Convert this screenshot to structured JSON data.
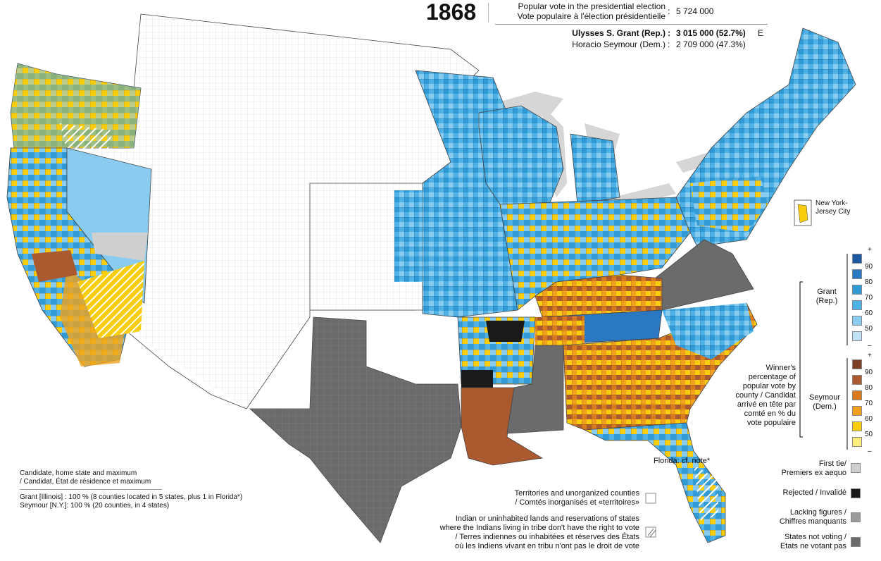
{
  "header": {
    "year": "1868",
    "popular_vote_en": "Popular vote in the presidential election",
    "popular_vote_fr": "Vote populaire à l'élection présidentielle",
    "colon": ":",
    "total_votes": "5 724 000",
    "grant": {
      "name": "Ulysses S. Grant (Rep.)",
      "colon": ":",
      "votes": "3 015 000  (52.7%)",
      "mark": "E"
    },
    "seymour": {
      "name": "Horacio Seymour (Dem.)",
      "colon": ":",
      "votes": "2 709 000  (47.3%)"
    }
  },
  "inset": {
    "label": "New York-\nJersey City"
  },
  "florida_note": "Florida: cf. note*",
  "scale": {
    "plus": "+",
    "minus": "–",
    "ticks": [
      "90",
      "80",
      "70",
      "60",
      "50"
    ],
    "grant_label": "Grant\n(Rep.)",
    "seymour_label": "Seymour\n(Dem.)",
    "caption": "Winner's\npercentage of\npopular vote by\ncounty / Candidat\narrivé en tête par\ncomté en % du\nvote populaire",
    "grant_colors": [
      "#1d5aa6",
      "#2a78c2",
      "#2f9ad6",
      "#4fb2e6",
      "#89ccf0",
      "#bfe2f7"
    ],
    "seymour_colors": [
      "#7e4026",
      "#aa5a2e",
      "#d97a1f",
      "#f0a21c",
      "#f7cd0e",
      "#fbee7a"
    ]
  },
  "categories": {
    "first_tie": "First tie/\nPremiers ex aequo",
    "rejected": "Rejected / Invalidé",
    "lacking": "Lacking figures /\nChiffres manquants",
    "not_voting": "States not voting /\nEtats ne votant pas",
    "first_tie_color": "#cfcfcf",
    "rejected_color": "#1a1a1a",
    "lacking_color": "#9a9a9a",
    "not_voting_color": "#6b6b6b"
  },
  "territories": {
    "unorganized": "Territories and unorganized counties\n/ Comtés inorganisés et «territoires»",
    "indian": "Indian or uninhabited lands and reservations of states\nwhere the Indians living in tribe don't have the right to vote\n/ Terres indiennes ou inhabitées et réserves des États\noù les Indiens vivant en tribu n'ont pas le droit de vote"
  },
  "notes": {
    "title": "Candidate, home state and maximum\n/ Candidat, État de résidence et maximum",
    "grant": "Grant [Illinois]  : 100 % (8 counties located in 5 states, plus 1 in Florida*)",
    "seymour": "Seymour [N.Y.]: 100 % (20 counties, in 4 states)"
  }
}
